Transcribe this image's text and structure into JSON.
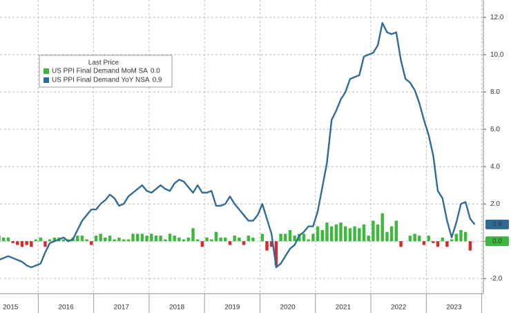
{
  "chart_data": {
    "type": "bar_line",
    "legend_title": "Last Price",
    "x": [
      2015.292,
      2015.375,
      2015.458,
      2015.542,
      2015.625,
      2015.708,
      2015.792,
      2015.875,
      2015.958,
      2016.042,
      2016.125,
      2016.208,
      2016.292,
      2016.375,
      2016.458,
      2016.542,
      2016.625,
      2016.708,
      2016.792,
      2016.875,
      2016.958,
      2017.042,
      2017.125,
      2017.208,
      2017.292,
      2017.375,
      2017.458,
      2017.542,
      2017.625,
      2017.708,
      2017.792,
      2017.875,
      2017.958,
      2018.042,
      2018.125,
      2018.208,
      2018.292,
      2018.375,
      2018.458,
      2018.542,
      2018.625,
      2018.708,
      2018.792,
      2018.875,
      2018.958,
      2019.042,
      2019.125,
      2019.208,
      2019.292,
      2019.375,
      2019.458,
      2019.542,
      2019.625,
      2019.708,
      2019.792,
      2019.875,
      2019.958,
      2020.042,
      2020.125,
      2020.208,
      2020.292,
      2020.375,
      2020.458,
      2020.542,
      2020.625,
      2020.708,
      2020.792,
      2020.875,
      2020.958,
      2021.042,
      2021.125,
      2021.208,
      2021.292,
      2021.375,
      2021.458,
      2021.542,
      2021.625,
      2021.708,
      2021.792,
      2021.875,
      2021.958,
      2022.042,
      2022.125,
      2022.208,
      2022.292,
      2022.375,
      2022.458,
      2022.542,
      2022.625,
      2022.708,
      2022.792,
      2022.875,
      2022.958,
      2023.042,
      2023.125,
      2023.208,
      2023.292,
      2023.375,
      2023.458,
      2023.542,
      2023.625,
      2023.708,
      2023.792,
      2023.875
    ],
    "series": [
      {
        "name": "US PPI Final Demand MoM SA",
        "type": "bar",
        "color": "#3cb83c",
        "negative_color": "#d42a2a",
        "last_label": "0.0",
        "values": [
          0.3,
          0.2,
          0.2,
          -0.1,
          -0.2,
          -0.3,
          -0.2,
          -0.3,
          0.1,
          0.2,
          -0.3,
          0.1,
          0.2,
          0.2,
          0.1,
          0.1,
          0.2,
          0.3,
          0.3,
          0.1,
          -0.2,
          0.3,
          0.4,
          0.2,
          0.3,
          0.1,
          0.2,
          0.1,
          0.1,
          0.4,
          0.4,
          0.4,
          0.3,
          0.4,
          0.3,
          0.3,
          0.1,
          0.4,
          0.3,
          0.2,
          0.1,
          0.2,
          0.7,
          0.1,
          -0.3,
          0.2,
          0.1,
          0.5,
          0.2,
          0.2,
          -0.2,
          0.3,
          0.2,
          -0.2,
          0.3,
          0.2,
          0.0,
          0.4,
          -0.5,
          -0.3,
          -1.3,
          0.4,
          0.4,
          0.6,
          0.3,
          0.4,
          0.4,
          0.1,
          0.4,
          0.8,
          0.6,
          1.0,
          0.8,
          0.9,
          1.0,
          0.8,
          0.7,
          0.8,
          0.7,
          0.9,
          0.3,
          1.1,
          0.9,
          1.5,
          0.5,
          0.8,
          1.1,
          -0.3,
          0.0,
          0.3,
          0.4,
          0.3,
          -0.2,
          0.3,
          -0.1,
          -0.3,
          0.2,
          -0.3,
          0.1,
          0.4,
          0.6,
          0.5,
          -0.5,
          0.0
        ]
      },
      {
        "name": "US PPI Final Demand YoY NSA",
        "type": "line",
        "color": "#2f6b98",
        "last_label": "0.9",
        "values": [
          -1.0,
          -0.9,
          -0.8,
          -0.9,
          -1.0,
          -1.1,
          -1.3,
          -1.4,
          -1.3,
          -1.2,
          -0.6,
          -0.1,
          0.0,
          0.1,
          0.2,
          0.0,
          0.1,
          0.6,
          1.1,
          1.4,
          1.7,
          1.7,
          2.0,
          2.2,
          2.5,
          2.3,
          1.9,
          2.0,
          2.4,
          2.6,
          2.8,
          3.0,
          2.7,
          2.6,
          2.8,
          3.0,
          2.8,
          2.7,
          3.1,
          3.3,
          3.2,
          2.9,
          2.6,
          3.0,
          2.6,
          2.6,
          2.7,
          1.9,
          1.9,
          2.0,
          2.4,
          2.0,
          1.7,
          1.4,
          1.1,
          1.1,
          1.4,
          2.0,
          1.2,
          0.4,
          -1.4,
          -1.2,
          -0.8,
          -0.4,
          -0.2,
          0.3,
          0.5,
          0.8,
          0.8,
          1.6,
          2.9,
          4.2,
          6.5,
          7.0,
          7.6,
          8.0,
          8.7,
          8.8,
          8.9,
          9.9,
          10.0,
          10.1,
          10.5,
          11.7,
          11.2,
          11.1,
          11.2,
          9.7,
          8.7,
          8.5,
          8.1,
          7.4,
          6.5,
          5.7,
          4.6,
          2.7,
          2.3,
          1.1,
          0.2,
          1.0,
          2.0,
          2.1,
          1.2,
          0.9
        ]
      }
    ],
    "xlim": [
      2015.31,
      2024.03
    ],
    "xticks": [
      {
        "value": 2015.5,
        "label": "2015"
      },
      {
        "value": 2016.5,
        "label": "2016"
      },
      {
        "value": 2017.5,
        "label": "2017"
      },
      {
        "value": 2018.5,
        "label": "2018"
      },
      {
        "value": 2019.5,
        "label": "2019"
      },
      {
        "value": 2020.5,
        "label": "2020"
      },
      {
        "value": 2021.5,
        "label": "2021"
      },
      {
        "value": 2022.5,
        "label": "2022"
      },
      {
        "value": 2023.5,
        "label": "2023"
      }
    ],
    "xgrid": [
      2016,
      2017,
      2018,
      2019,
      2020,
      2021,
      2022,
      2023,
      2024
    ],
    "ylim": [
      -2.81,
      12.93
    ],
    "yticks": [
      {
        "value": -2,
        "label": "-2.0"
      },
      {
        "value": 0,
        "label": "0.0"
      },
      {
        "value": 2,
        "label": "2.0"
      },
      {
        "value": 4,
        "label": "4.0"
      },
      {
        "value": 6,
        "label": "6.0"
      },
      {
        "value": 8,
        "label": "8.0"
      },
      {
        "value": 10,
        "label": "10.0"
      },
      {
        "value": 12,
        "label": "12.0"
      }
    ],
    "grid": true
  }
}
